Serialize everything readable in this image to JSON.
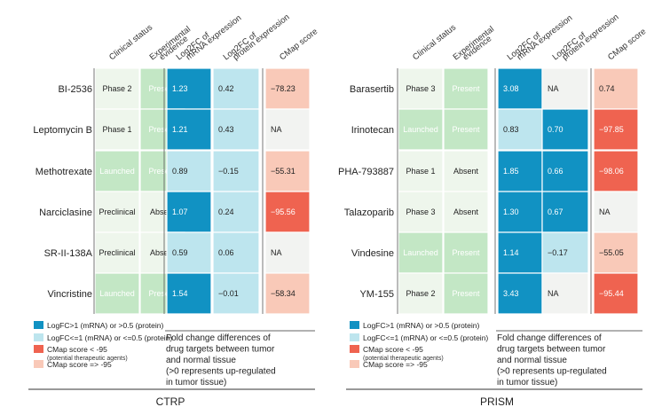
{
  "colors": {
    "strong_up": "#1192c3",
    "weak_up": "#bde5ee",
    "cmap_strong": "#ef6350",
    "cmap_weak": "#f9c9b8",
    "na": "#f2f3f1",
    "launched": "#c3e7c5",
    "present": "#c3e7c5",
    "phase": "#eef6ec",
    "absent": "#eef6ec"
  },
  "headers": {
    "clinical": "Clinical status",
    "experimental": [
      "Experimental",
      "evidence"
    ],
    "mrna": [
      "Log2FC of",
      "mRNA expression"
    ],
    "protein": [
      "Log2FC of",
      "protein expression"
    ],
    "cmap": "CMap score"
  },
  "legend": {
    "items": [
      {
        "label": "LogFC>1 (mRNA) or >0.5 (protein)",
        "color_key": "strong_up"
      },
      {
        "label": "LogFC<=1 (mRNA) or <=0.5 (protein)",
        "color_key": "weak_up"
      },
      {
        "label": "CMap score < -95",
        "sub": "(potential therapeutic agents)",
        "color_key": "cmap_strong"
      },
      {
        "label": "CMap score => -95",
        "color_key": "cmap_weak"
      }
    ],
    "note": [
      "Fold change differences of",
      "drug targets between tumor",
      "and normal tissue",
      "(>0 represents up-regulated",
      "in tumor tissue)"
    ]
  },
  "chart_data": [
    {
      "type": "table",
      "title": "CTRP",
      "rows": [
        {
          "drug": "BI-2536",
          "clinical": "Phase 2",
          "evidence": "Present",
          "mrna": "1.23",
          "protein": "0.42",
          "cmap": "-78.23"
        },
        {
          "drug": "Leptomycin B",
          "clinical": "Phase 1",
          "evidence": "Present",
          "mrna": "1.21",
          "protein": "0.43",
          "cmap": "NA"
        },
        {
          "drug": "Methotrexate",
          "clinical": "Launched",
          "evidence": "Present",
          "mrna": "0.89",
          "protein": "-0.15",
          "cmap": "-55.31"
        },
        {
          "drug": "Narciclasine",
          "clinical": "Preclinical",
          "evidence": "Absent",
          "mrna": "1.07",
          "protein": "0.24",
          "cmap": "-95.56"
        },
        {
          "drug": "SR-II-138A",
          "clinical": "Preclinical",
          "evidence": "Absent",
          "mrna": "0.59",
          "protein": "0.06",
          "cmap": "NA"
        },
        {
          "drug": "Vincristine",
          "clinical": "Launched",
          "evidence": "Present",
          "mrna": "1.54",
          "protein": "-0.01",
          "cmap": "-58.34"
        }
      ]
    },
    {
      "type": "table",
      "title": "PRISM",
      "rows": [
        {
          "drug": "Barasertib",
          "clinical": "Phase 3",
          "evidence": "Present",
          "mrna": "3.08",
          "protein": "NA",
          "cmap": "0.74"
        },
        {
          "drug": "Irinotecan",
          "clinical": "Launched",
          "evidence": "Present",
          "mrna": "0.83",
          "protein": "0.70",
          "cmap": "-97.85"
        },
        {
          "drug": "PHA-793887",
          "clinical": "Phase 1",
          "evidence": "Absent",
          "mrna": "1.85",
          "protein": "0.66",
          "cmap": "-98.06"
        },
        {
          "drug": "Talazoparib",
          "clinical": "Phase 3",
          "evidence": "Absent",
          "mrna": "1.30",
          "protein": "0.67",
          "cmap": "NA"
        },
        {
          "drug": "Vindesine",
          "clinical": "Launched",
          "evidence": "Present",
          "mrna": "1.14",
          "protein": "-0.17",
          "cmap": "-55.05"
        },
        {
          "drug": "YM-155",
          "clinical": "Phase 2",
          "evidence": "Present",
          "mrna": "3.43",
          "protein": "NA",
          "cmap": "-95.44"
        }
      ]
    }
  ]
}
